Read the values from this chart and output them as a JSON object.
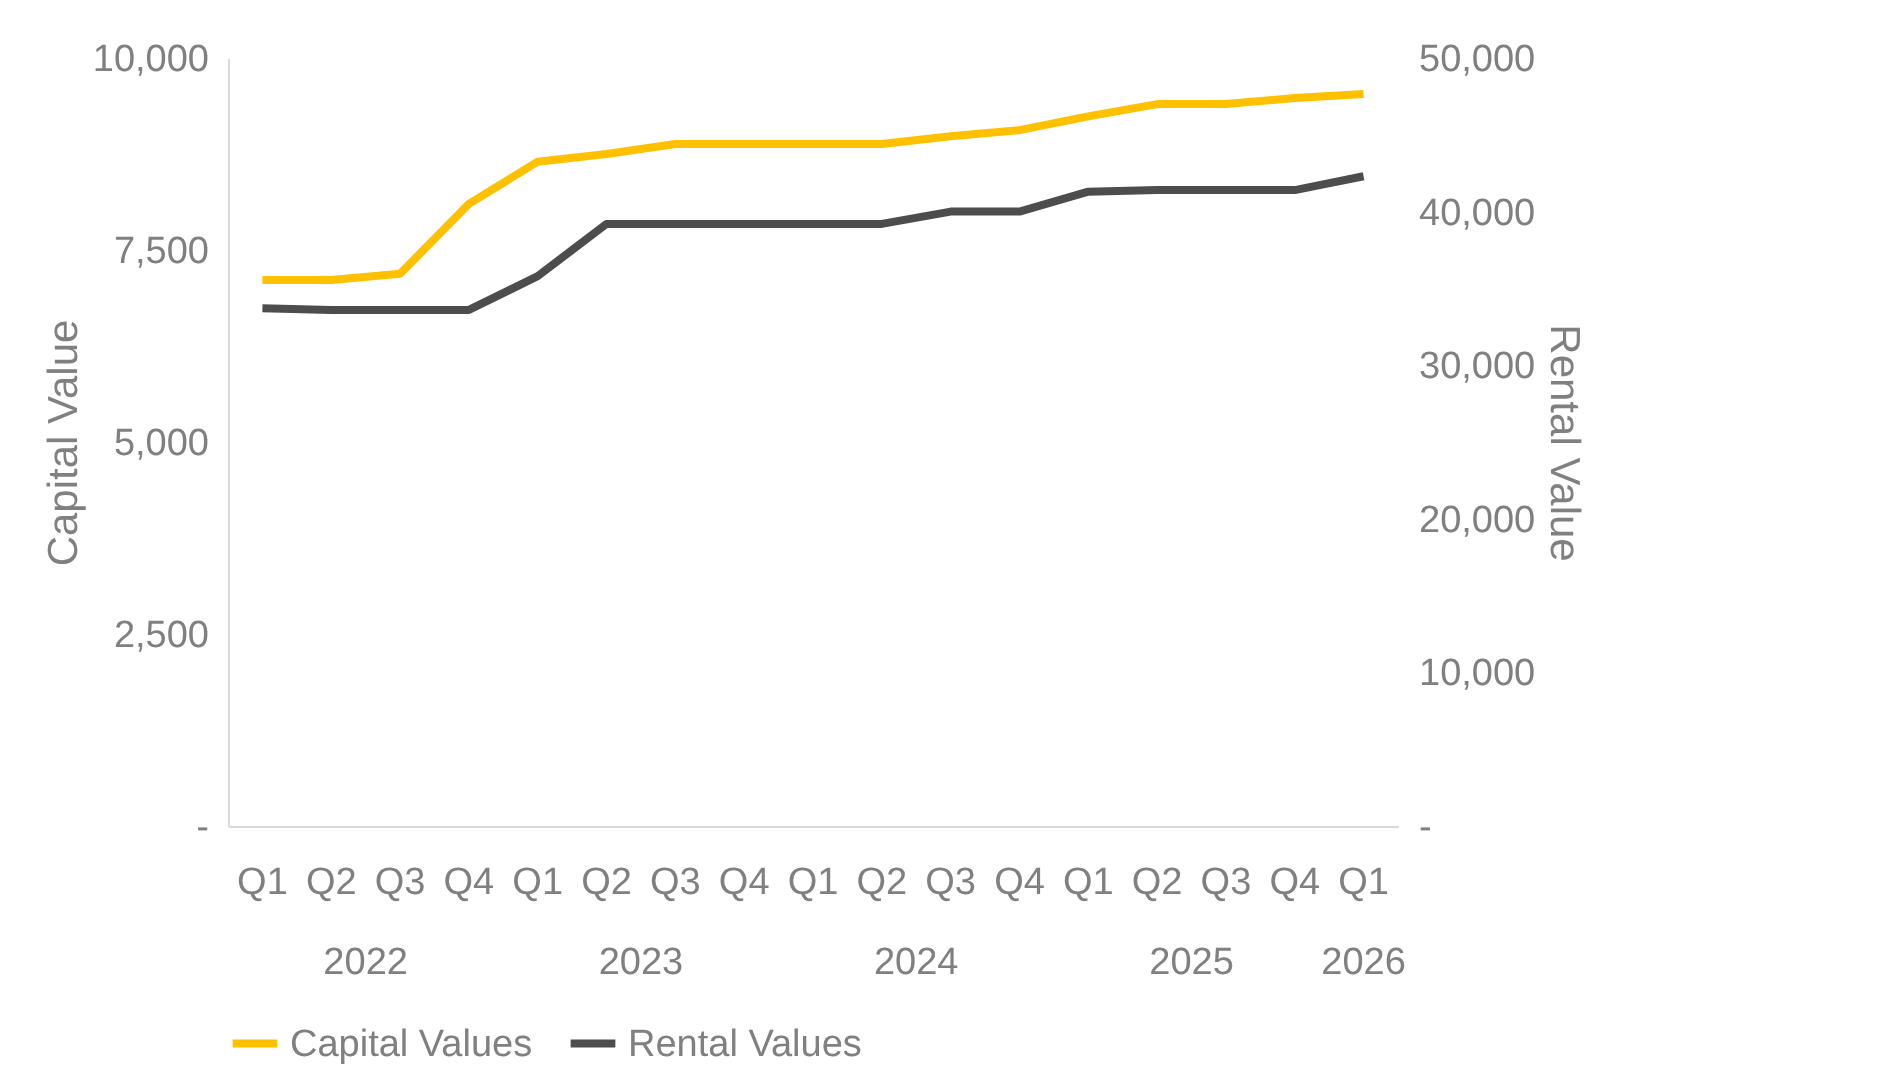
{
  "chart_data": {
    "type": "line",
    "ylabel": "Capital Value",
    "y2label": "Rental Value",
    "categories": [
      "Q1",
      "Q2",
      "Q3",
      "Q4",
      "Q1",
      "Q2",
      "Q3",
      "Q4",
      "Q1",
      "Q2",
      "Q3",
      "Q4",
      "Q1",
      "Q2",
      "Q3",
      "Q4",
      "Q1"
    ],
    "annotations": [
      "2022",
      "2023",
      "2024",
      "2025",
      "2026"
    ],
    "series": [
      {
        "name": "Capital Values",
        "color": "#ffc000",
        "values": [
          7110,
          7110,
          7190,
          8100,
          8650,
          8750,
          8880,
          8880,
          8880,
          8880,
          8980,
          9060,
          9240,
          9400,
          9400,
          9480,
          9530
        ]
      },
      {
        "name": "Rental Values",
        "color": "#4d4d4f",
        "axis": "y2",
        "values": [
          33700,
          33600,
          33600,
          33600,
          35800,
          39200,
          39200,
          39200,
          39200,
          39200,
          40000,
          40000,
          41300,
          41400,
          41400,
          41400,
          42300
        ]
      }
    ],
    "ylim": [
      0,
      10000
    ],
    "yticks": [
      {
        "value": 0,
        "label": "-"
      },
      {
        "value": 2500,
        "label": "2,500"
      },
      {
        "value": 5000,
        "label": "5,000"
      },
      {
        "value": 7500,
        "label": "7,500"
      },
      {
        "value": 10000,
        "label": "10,000"
      }
    ],
    "y2lim": [
      0,
      50000
    ],
    "y2ticks": [
      {
        "value": 0,
        "label": "-"
      },
      {
        "value": 10000,
        "label": "10,000"
      },
      {
        "value": 20000,
        "label": "20,000"
      },
      {
        "value": 30000,
        "label": "30,000"
      },
      {
        "value": 40000,
        "label": "40,000"
      },
      {
        "value": 50000,
        "label": "50,000"
      }
    ],
    "grid": false,
    "legend": "bottom",
    "marker": "none",
    "line_style": "solid"
  }
}
